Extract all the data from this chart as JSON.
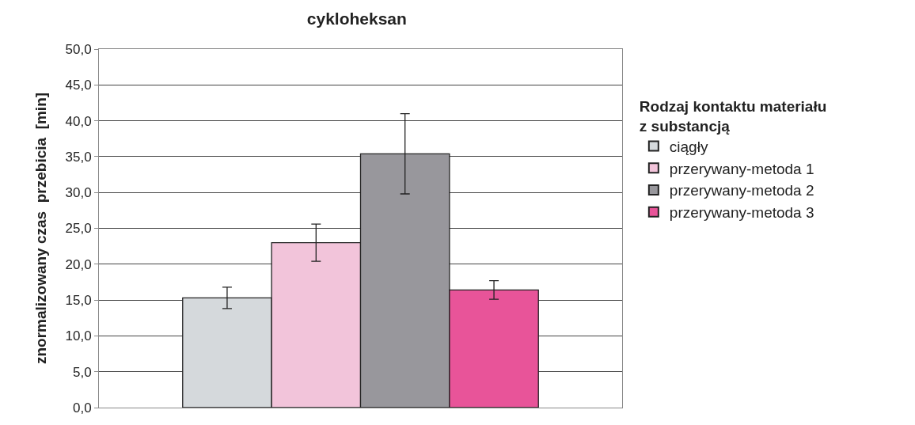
{
  "chart_data": {
    "type": "bar",
    "title": "cykloheksan",
    "ylabel": "znormalizowany czas  przebicia  [min]",
    "legend_title": "Rodzaj kontaktu materiału z substancją",
    "categories": [
      null
    ],
    "series": [
      {
        "name": "ciągły",
        "color": "#d5d9dc",
        "values": [
          15.3
        ],
        "errors": [
          1.5
        ]
      },
      {
        "name": "przerywany-metoda 1",
        "color": "#f2c4da",
        "values": [
          23.0
        ],
        "errors": [
          2.6
        ]
      },
      {
        "name": "przerywany-metoda 2",
        "color": "#98979c",
        "values": [
          35.4
        ],
        "errors": [
          5.6
        ]
      },
      {
        "name": "przerywany-metoda 3",
        "color": "#e85499",
        "values": [
          16.4
        ],
        "errors": [
          1.3
        ]
      }
    ],
    "ylim": [
      0,
      50
    ],
    "yticks": [
      {
        "value": 0,
        "label": "0,0"
      },
      {
        "value": 5,
        "label": "5,0"
      },
      {
        "value": 10,
        "label": "10,0"
      },
      {
        "value": 15,
        "label": "15,0"
      },
      {
        "value": 20,
        "label": "20,0"
      },
      {
        "value": 25,
        "label": "25,0"
      },
      {
        "value": 30,
        "label": "30,0"
      },
      {
        "value": 35,
        "label": "35,0"
      },
      {
        "value": 40,
        "label": "40,0"
      },
      {
        "value": 45,
        "label": "45,0"
      },
      {
        "value": 50,
        "label": "50,0"
      }
    ],
    "grid": "y",
    "legend": "right"
  }
}
